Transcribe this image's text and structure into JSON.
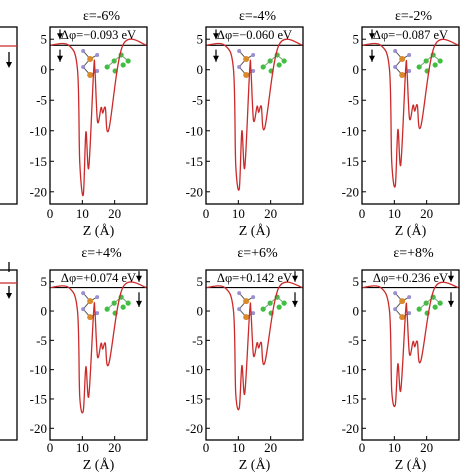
{
  "chart_data": [
    {
      "type": "line",
      "title": "ε=-6%",
      "annotation": "Δφ=−0.093 eV",
      "xlabel": "Z (Å)",
      "ylabel": "",
      "xlim": [
        0,
        30
      ],
      "ylim": [
        -22,
        7
      ],
      "xticks": [
        0,
        10,
        20
      ],
      "yticks": [
        5,
        0,
        -5,
        -10,
        -15,
        -20
      ],
      "vacuum_level": 4.0,
      "minima": [
        -20.5,
        -16.0,
        -9.8
      ],
      "series": [
        {
          "x": [
            0,
            5.8,
            8.5,
            9.2,
            10.3,
            11.1,
            12.0,
            13.5,
            13.9,
            14.7,
            15.8,
            16.3,
            17.1,
            18.2,
            22.5,
            30
          ],
          "y": [
            4.0,
            4.0,
            0,
            -15.0,
            -20.5,
            -10.2,
            -16.0,
            0,
            0,
            -8.5,
            -6.2,
            -7.1,
            -6.2,
            -9.8,
            4.0,
            4.0
          ]
        }
      ],
      "line_color": "#cc2a2a"
    },
    {
      "type": "line",
      "title": "ε=-4%",
      "annotation": "Δφ=−0.060 eV",
      "xlabel": "Z (Å)",
      "ylabel": "",
      "xlim": [
        0,
        30
      ],
      "ylim": [
        -22,
        7
      ],
      "xticks": [
        0,
        10,
        20
      ],
      "yticks": [
        5,
        0,
        -5,
        -10,
        -15,
        -20
      ],
      "vacuum_level": 4.0,
      "minima": [
        -19.5,
        -16.0,
        -9.5
      ],
      "series": [
        {
          "x": [
            0,
            5.8,
            8.5,
            9.2,
            10.3,
            11.1,
            12.0,
            13.5,
            13.9,
            14.7,
            15.8,
            16.3,
            17.1,
            18.2,
            22.5,
            30
          ],
          "y": [
            4.0,
            4.0,
            0,
            -15.5,
            -19.5,
            -10.0,
            -16.0,
            0,
            0,
            -8.3,
            -6.0,
            -7.0,
            -6.0,
            -9.5,
            4.0,
            4.0
          ]
        }
      ],
      "line_color": "#cc2a2a"
    },
    {
      "type": "line",
      "title": "ε=-2%",
      "annotation": "Δφ=−0.087 eV",
      "xlabel": "Z (Å)",
      "ylabel": "",
      "xlim": [
        0,
        30
      ],
      "ylim": [
        -22,
        7
      ],
      "xticks": [
        0,
        10,
        20
      ],
      "yticks": [
        5,
        0,
        -5,
        -10,
        -15,
        -20
      ],
      "vacuum_level": 4.0,
      "minima": [
        -19.0,
        -15.5,
        -9.3
      ],
      "series": [
        {
          "x": [
            0,
            5.8,
            8.5,
            9.2,
            10.3,
            11.1,
            12.0,
            13.5,
            13.9,
            14.7,
            15.8,
            16.3,
            17.1,
            18.2,
            22.5,
            30
          ],
          "y": [
            4.0,
            4.0,
            0,
            -15.0,
            -19.0,
            -9.8,
            -15.5,
            0,
            0,
            -8.0,
            -5.8,
            -6.8,
            -5.8,
            -9.3,
            4.0,
            4.0
          ]
        }
      ],
      "line_color": "#cc2a2a"
    },
    {
      "type": "line",
      "title": "ε=+4%",
      "annotation": "Δφ=+0.074 eV",
      "xlabel": "Z (Å)",
      "ylabel": "",
      "xlim": [
        0,
        30
      ],
      "ylim": [
        -22,
        7
      ],
      "xticks": [
        0,
        10,
        20
      ],
      "yticks": [
        5,
        0,
        -5,
        -10,
        -15,
        -20
      ],
      "vacuum_level": 4.0,
      "minima": [
        -17.0,
        -14.5,
        -9.0
      ],
      "series": [
        {
          "x": [
            0,
            5.8,
            8.5,
            9.2,
            10.3,
            11.1,
            12.0,
            13.5,
            13.9,
            14.7,
            15.8,
            16.3,
            17.1,
            18.2,
            22.5,
            30
          ],
          "y": [
            4.0,
            4.0,
            0,
            -14.5,
            -17.0,
            -9.5,
            -14.5,
            0,
            0,
            -7.8,
            -5.5,
            -6.5,
            -5.5,
            -9.0,
            4.0,
            4.0
          ]
        }
      ],
      "line_color": "#cc2a2a"
    },
    {
      "type": "line",
      "title": "ε=+6%",
      "annotation": "Δφ=+0.142 eV",
      "xlabel": "Z (Å)",
      "ylabel": "",
      "xlim": [
        0,
        30
      ],
      "ylim": [
        -22,
        7
      ],
      "xticks": [
        0,
        10,
        20
      ],
      "yticks": [
        5,
        0,
        -5,
        -10,
        -15,
        -20
      ],
      "vacuum_level": 4.0,
      "minima": [
        -16.5,
        -14.0,
        -8.8
      ],
      "series": [
        {
          "x": [
            0,
            5.8,
            8.5,
            9.2,
            10.3,
            11.1,
            12.0,
            13.5,
            13.9,
            14.7,
            15.8,
            16.3,
            17.1,
            18.2,
            22.5,
            30
          ],
          "y": [
            4.0,
            4.0,
            0,
            -14.0,
            -16.5,
            -9.3,
            -14.0,
            0,
            0,
            -7.6,
            -5.4,
            -6.3,
            -5.4,
            -8.8,
            4.0,
            4.0
          ]
        }
      ],
      "line_color": "#cc2a2a"
    },
    {
      "type": "line",
      "title": "ε=+8%",
      "annotation": "Δφ=+0.236 eV",
      "xlabel": "Z (Å)",
      "ylabel": "",
      "xlim": [
        0,
        30
      ],
      "ylim": [
        -22,
        7
      ],
      "xticks": [
        0,
        10,
        20
      ],
      "yticks": [
        5,
        0,
        -5,
        -10,
        -15,
        -20
      ],
      "vacuum_level": 4.0,
      "minima": [
        -16.0,
        -13.5,
        -8.5
      ],
      "series": [
        {
          "x": [
            0,
            5.8,
            8.5,
            9.2,
            10.3,
            11.1,
            12.0,
            13.5,
            13.9,
            14.7,
            15.8,
            16.3,
            17.1,
            18.2,
            22.5,
            30
          ],
          "y": [
            4.0,
            4.0,
            0,
            -13.5,
            -16.0,
            -9.0,
            -13.5,
            0,
            0,
            -7.4,
            -5.2,
            -6.1,
            -5.2,
            -8.5,
            4.0,
            4.0
          ]
        }
      ],
      "line_color": "#cc2a2a"
    }
  ],
  "colors": {
    "curve": "#cc2a2a",
    "vacuum_line": "#000000",
    "atom_green": "#3fbf3f",
    "atom_orange": "#d98a2a",
    "atom_lilac": "#9a8fd0"
  },
  "icons": [
    "molecule-structure-icon",
    "work-function-arrow-icon"
  ]
}
